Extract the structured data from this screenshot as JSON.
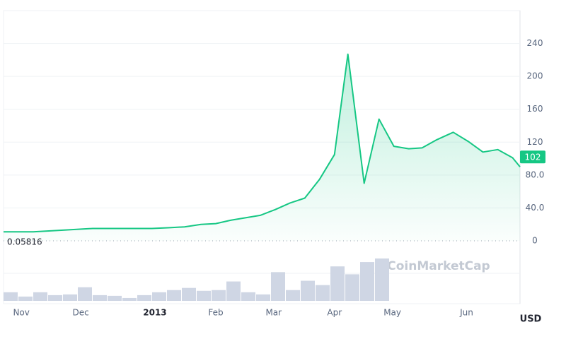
{
  "chart_data": {
    "type": "line",
    "x": [
      0,
      2,
      4,
      6,
      8,
      10,
      11.2,
      12.2,
      13.3,
      14.3,
      15.3,
      16.3,
      17.3,
      18.3,
      19.3,
      20.3,
      21.3,
      22.3,
      23.2,
      24.3,
      25.3,
      26.3,
      27.3,
      28.2,
      29.2,
      30.3,
      31.3,
      32.3,
      33.3,
      34.3,
      34.8
    ],
    "series": [
      {
        "color": "#16c784",
        "values": [
          11,
          11,
          13,
          15,
          15,
          15,
          16,
          17,
          20,
          21,
          25,
          28,
          31,
          38,
          46,
          52,
          75,
          105,
          227,
          70,
          148,
          115,
          112,
          113,
          123,
          132,
          121,
          108,
          111,
          101,
          90
        ]
      }
    ],
    "volume": {
      "color": "#cfd6e4",
      "x": [
        0,
        1,
        2,
        3,
        4,
        5,
        6,
        7,
        8,
        9,
        10,
        11,
        12,
        13,
        14,
        15,
        16,
        17,
        18,
        19,
        20,
        21,
        22,
        23,
        24,
        25
      ],
      "values": [
        12,
        6,
        12,
        8,
        9,
        19,
        8,
        7,
        4,
        8,
        12,
        15,
        18,
        14,
        15,
        27,
        12,
        9,
        40,
        15,
        28,
        22,
        48,
        37,
        54,
        59
      ]
    },
    "xlim": [
      0,
      34.8
    ],
    "xticks": [
      {
        "value": 1.2,
        "label": "Nov"
      },
      {
        "value": 5.2,
        "label": "Dec"
      },
      {
        "value": 10.2,
        "label": "2013"
      },
      {
        "value": 14.3,
        "label": "Feb"
      },
      {
        "value": 18.2,
        "label": "Mar"
      },
      {
        "value": 22.3,
        "label": "Apr"
      },
      {
        "value": 26.2,
        "label": "May"
      },
      {
        "value": 31.2,
        "label": "Jun"
      }
    ],
    "ylim": [
      0,
      280
    ],
    "yticks": [
      0,
      {
        "value": 40,
        "label": "40.0"
      },
      {
        "value": 80,
        "label": "80.0"
      },
      120,
      160,
      200,
      240
    ],
    "grid": true,
    "min_label": {
      "value": 0.05816,
      "label": "0.05816"
    },
    "price_tag": 102,
    "watermark": "CoinMarketCap",
    "currency": "USD"
  }
}
